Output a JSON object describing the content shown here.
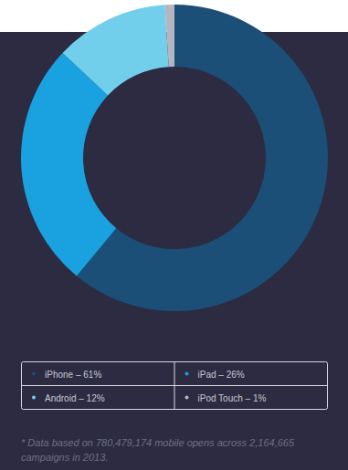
{
  "chart_data": {
    "type": "donut",
    "categories": [
      "iPhone – 61%",
      "iPad – 26%",
      "Android – 12%",
      "iPod Touch – 1%"
    ],
    "values": [
      61,
      26,
      12,
      1
    ],
    "colors": [
      "#1b4f78",
      "#1aa2e0",
      "#72cfec",
      "#b4b7bf"
    ],
    "legend": "bottom",
    "footnote": "* Data based on 780,479,174 mobile opens across 2,164,665 campaigns in 2013."
  }
}
